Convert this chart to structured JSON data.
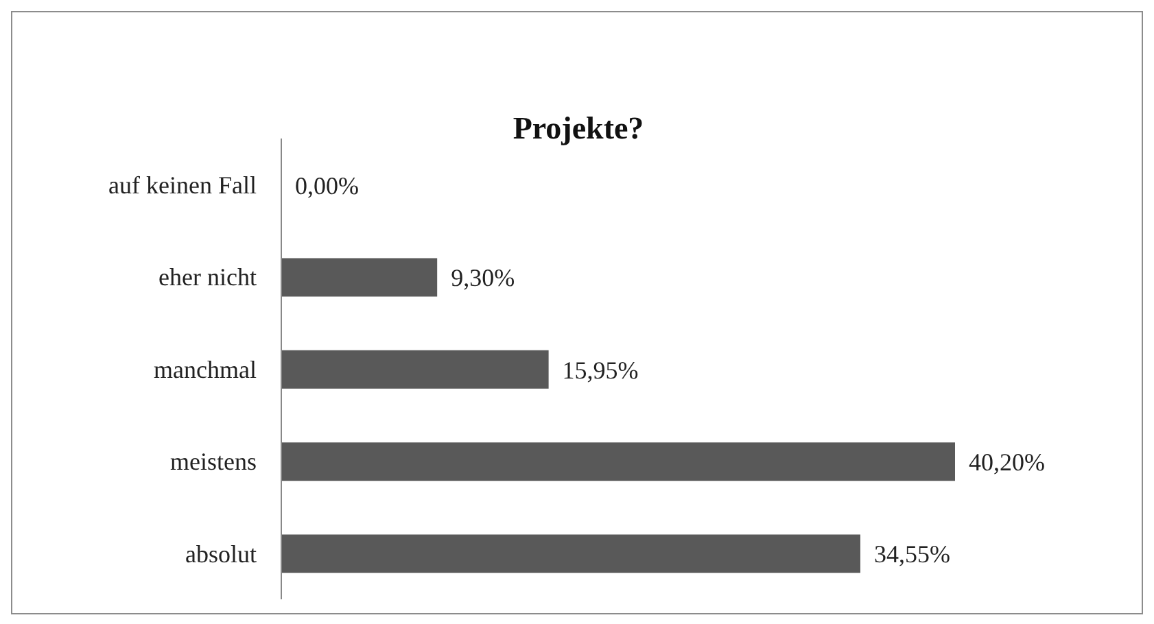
{
  "chart_data": {
    "type": "bar",
    "orientation": "horizontal",
    "title": "Projekte?",
    "categories": [
      "auf keinen Fall",
      "eher nicht",
      "manchmal",
      "meistens",
      "absolut"
    ],
    "values": [
      0,
      9.3,
      15.95,
      40.2,
      34.55
    ],
    "value_labels": [
      "0,00%",
      "9,30%",
      "15,95%",
      "40,20%",
      "34,55%"
    ],
    "color": "#595959",
    "grid": false,
    "legend": false
  }
}
